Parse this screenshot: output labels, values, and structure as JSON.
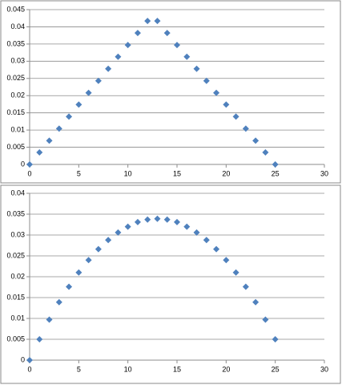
{
  "chart_data": [
    {
      "type": "scatter",
      "x": [
        0,
        1,
        2,
        3,
        4,
        5,
        6,
        7,
        8,
        9,
        10,
        11,
        12,
        13,
        14,
        15,
        16,
        17,
        18,
        19,
        20,
        21,
        22,
        23,
        24,
        25
      ],
      "series": [
        {
          "color": "#4f81bd",
          "values": [
            0,
            0.0035,
            0.0069,
            0.0104,
            0.0139,
            0.0174,
            0.0208,
            0.0243,
            0.0278,
            0.0313,
            0.0347,
            0.0382,
            0.0417,
            0.0417,
            0.0382,
            0.0347,
            0.0313,
            0.0278,
            0.0243,
            0.0208,
            0.0174,
            0.0139,
            0.0104,
            0.0069,
            0.0035,
            0
          ]
        }
      ],
      "xlim": [
        0,
        30
      ],
      "xticks": [
        0,
        5,
        10,
        15,
        20,
        25,
        30
      ],
      "ylim": [
        0,
        0.045
      ],
      "yticks": [
        0,
        0.005,
        0.01,
        0.015,
        0.02,
        0.025,
        0.03,
        0.035,
        0.04,
        0.045
      ],
      "grid": true
    },
    {
      "type": "scatter",
      "x": [
        0,
        1,
        2,
        3,
        4,
        5,
        6,
        7,
        8,
        9,
        10,
        11,
        12,
        13,
        14,
        15,
        16,
        17,
        18,
        19,
        20,
        21,
        22,
        23,
        24,
        25
      ],
      "series": [
        {
          "color": "#4f81bd",
          "values": [
            0,
            0.005,
            0.0097,
            0.0139,
            0.0176,
            0.021,
            0.024,
            0.0266,
            0.0288,
            0.0306,
            0.032,
            0.0331,
            0.0337,
            0.0339,
            0.0337,
            0.0331,
            0.032,
            0.0306,
            0.0288,
            0.0266,
            0.024,
            0.021,
            0.0176,
            0.0139,
            0.0097,
            0.005
          ]
        }
      ],
      "xlim": [
        0,
        30
      ],
      "xticks": [
        0,
        5,
        10,
        15,
        20,
        25,
        30
      ],
      "ylim": [
        0,
        0.04
      ],
      "yticks": [
        0,
        0.005,
        0.01,
        0.015,
        0.02,
        0.025,
        0.03,
        0.035,
        0.04
      ],
      "grid": true
    }
  ]
}
